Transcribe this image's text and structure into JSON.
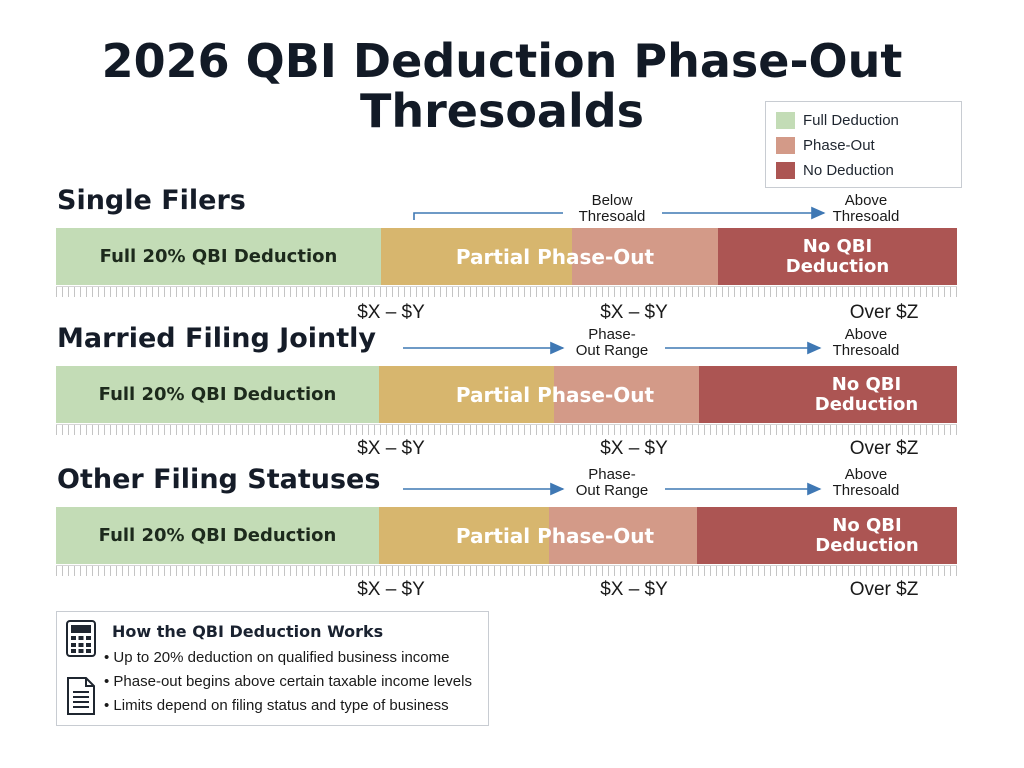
{
  "title_line1": "2026 QBI Deduction Phase-Out",
  "title_line2": "Thresoalds",
  "legend": {
    "items": [
      {
        "label": "Full Deduction",
        "color": "#c3dcb6"
      },
      {
        "label": "Phase-Out",
        "color": "#d39a88"
      },
      {
        "label": "No Deduction",
        "color": "#ac5553"
      }
    ]
  },
  "colors": {
    "full": "#c3dcb6",
    "gold": "#d7b66e",
    "rose": "#d39a88",
    "red": "#ac5553",
    "arrow": "#3f78b4"
  },
  "sections": [
    {
      "title": "Single Filers",
      "full_label": "Full 20% QBI Deduction",
      "partial_label": "Partial Phase-Out",
      "none_label_1": "No QBI",
      "none_label_2": "Deduction",
      "anno_mid_1": "Below",
      "anno_mid_2": "Thresoald",
      "anno_right_1": "Above",
      "anno_right_2": "Thresoald",
      "tick_left": "$X – $Y",
      "tick_mid": "$X – $Y",
      "tick_right": "Over  $Z"
    },
    {
      "title": "Married Filing Jointly",
      "full_label": "Full 20% QBI Deduction",
      "partial_label": "Partial Phase-Out",
      "none_label_1": "No QBI",
      "none_label_2": "Deduction",
      "anno_mid_1": "Phase-",
      "anno_mid_2": "Out Range",
      "anno_right_1": "Above",
      "anno_right_2": "Thresoald",
      "tick_left": "$X – $Y",
      "tick_mid": "$X – $Y",
      "tick_right": "Over  $Z"
    },
    {
      "title": "Other Filing Statuses",
      "full_label": "Full 20% QBI Deduction",
      "partial_label": "Partial Phase-Out",
      "none_label_1": "No QBI",
      "none_label_2": "Deduction",
      "anno_mid_1": "Phase-",
      "anno_mid_2": "Out Range",
      "anno_right_1": "Above",
      "anno_right_2": "Thresoald",
      "tick_left": "$X – $Y",
      "tick_mid": "$X – $Y",
      "tick_right": "Over  $Z"
    }
  ],
  "info": {
    "icon_top": "calculator-icon",
    "icon_bottom": "document-icon",
    "heading": "How the QBI Deduction Works",
    "bullets": [
      "• Up to 20% deduction on qualified business income",
      "• Phase-out begins above certain taxable income levels",
      "• Limits depend on filing status and type of business"
    ]
  }
}
